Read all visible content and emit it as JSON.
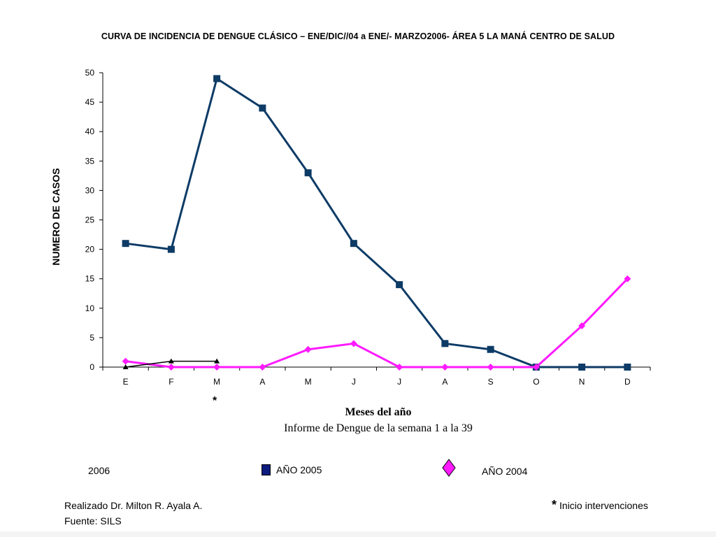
{
  "chart_data": {
    "type": "line",
    "title": "CURVA DE INCIDENCIA DE DENGUE CLÁSICO – ENE/DIC//04 a ENE/- MARZO2006- ÁREA 5 LA MANÁ CENTRO DE SALUD",
    "categories": [
      "E",
      "F",
      "M",
      "A",
      "M",
      "J",
      "J",
      "A",
      "S",
      "O",
      "N",
      "D"
    ],
    "xlabel": "Meses del año",
    "subtitle": "Informe de Dengue de la semana 1 a la 39",
    "ylabel": "NUMERO DE CASOS",
    "ylim": [
      0,
      50
    ],
    "yticks": [
      0,
      5,
      10,
      15,
      20,
      25,
      30,
      35,
      40,
      45,
      50
    ],
    "grid": false,
    "legend_position": "bottom",
    "series": [
      {
        "name": "AÑO 2005",
        "color": "#0d3b66",
        "marker": "square",
        "values": [
          21,
          20,
          49,
          44,
          33,
          21,
          14,
          4,
          3,
          0,
          0,
          0
        ]
      },
      {
        "name": "AÑO 2004",
        "color": "#ff1aff",
        "marker": "diamond",
        "values": [
          1,
          0,
          0,
          0,
          3,
          4,
          0,
          0,
          0,
          0,
          7,
          15
        ]
      },
      {
        "name": "2006",
        "color": "#000000",
        "marker": "triangle",
        "values": [
          0,
          1,
          1,
          null,
          null,
          null,
          null,
          null,
          null,
          null,
          null,
          null
        ]
      }
    ]
  },
  "annotation_mark": "*",
  "legend": {
    "year_2006": "2006",
    "year_2005": "AÑO 2005",
    "year_2004": "AÑO 2004"
  },
  "footer": {
    "author": "Realizado Dr. Milton R. Ayala A.",
    "source": "Fuente: SILS",
    "note_mark": "*",
    "note_text": "Inicio intervenciones"
  }
}
